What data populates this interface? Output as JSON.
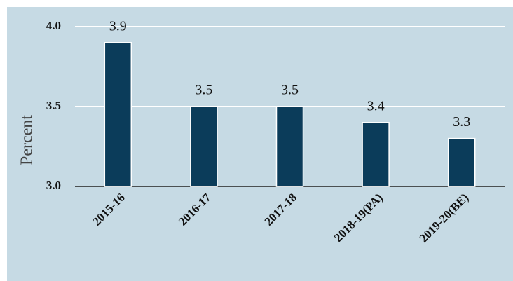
{
  "chart_data": {
    "type": "bar",
    "ylabel": "Percent",
    "categories": [
      "2015-16",
      "2016-17",
      "2017-18",
      "2018-19(PA)",
      "2019-20(BE)"
    ],
    "values": [
      3.9,
      3.5,
      3.5,
      3.4,
      3.3
    ],
    "color": "#0b3c5a",
    "ylim": [
      3.0,
      4.0
    ],
    "yticks": [
      {
        "value": 3.0,
        "label": "3.0"
      },
      {
        "value": 3.5,
        "label": "3.5"
      },
      {
        "value": 4.0,
        "label": "4.0"
      }
    ],
    "grid": true
  }
}
